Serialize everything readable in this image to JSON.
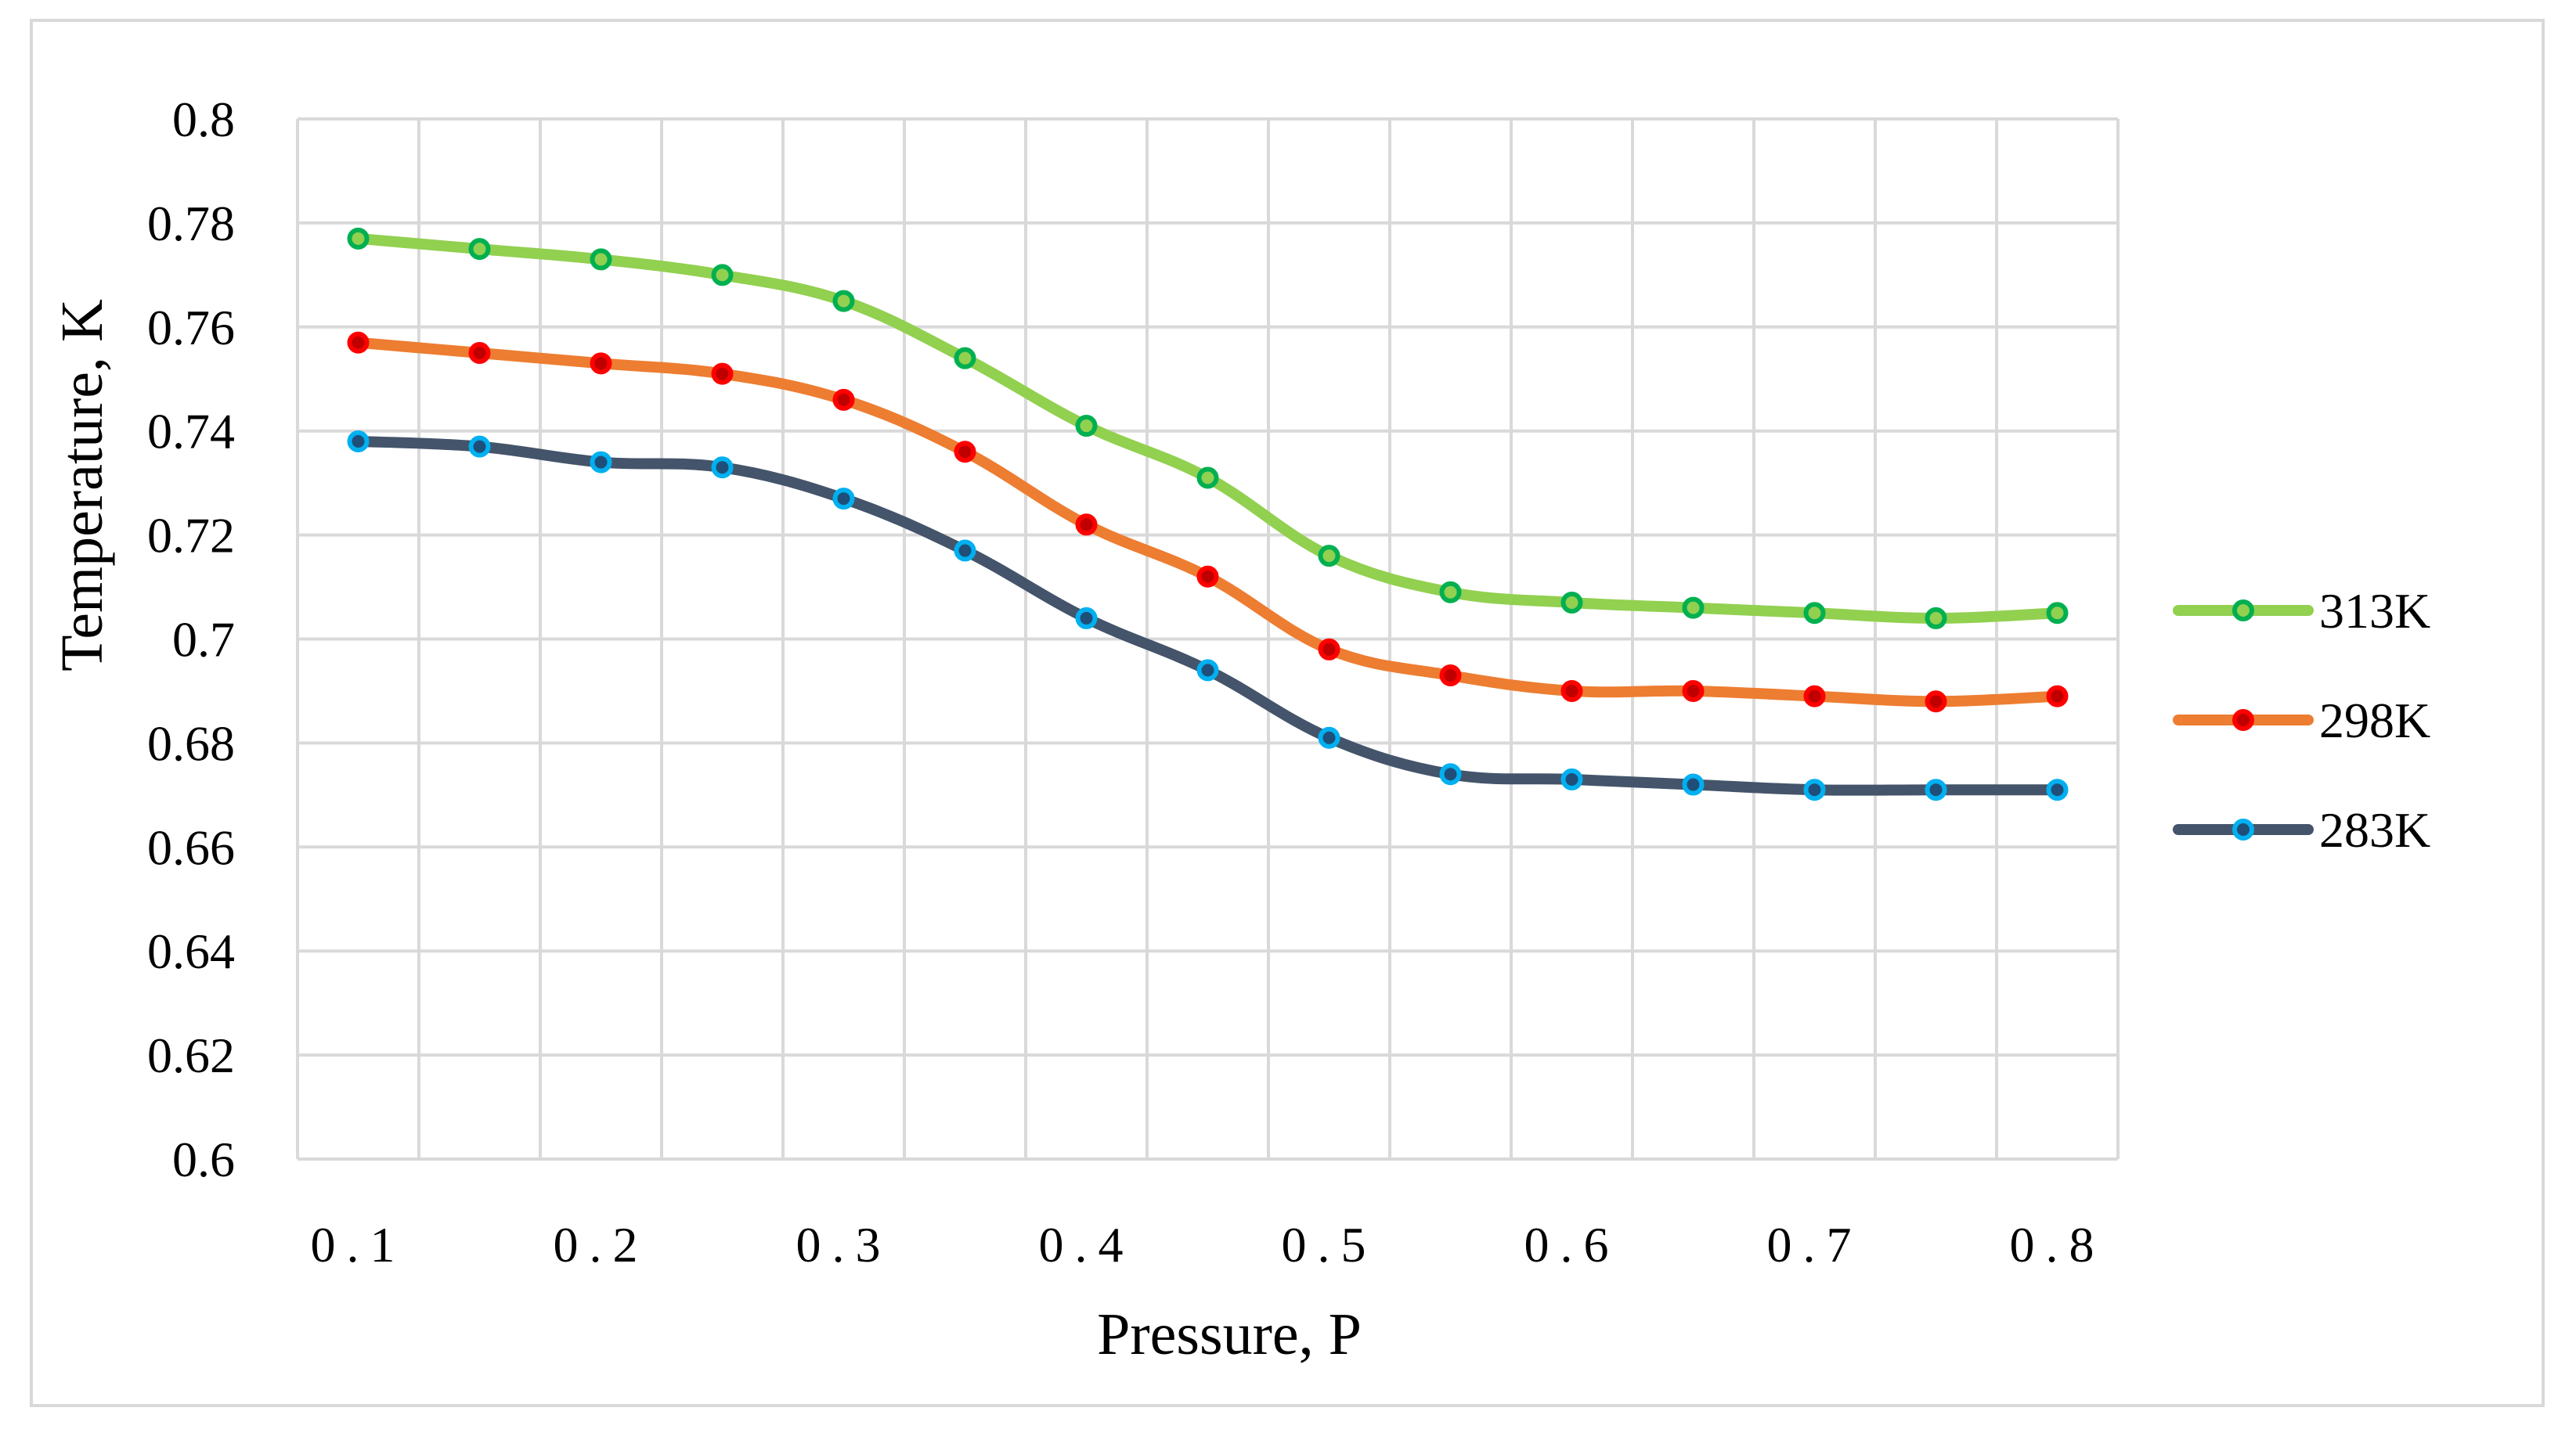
{
  "chart_data": {
    "type": "line",
    "title": "",
    "xlabel": "Pressure, P",
    "ylabel": "Temperature, K",
    "x": [
      0.1,
      0.15,
      0.2,
      0.25,
      0.3,
      0.35,
      0.4,
      0.45,
      0.5,
      0.55,
      0.6,
      0.65,
      0.7,
      0.75,
      0.8
    ],
    "x_tick_labels": [
      "0.1",
      "0.2",
      "0.3",
      "0.4",
      "0.5",
      "0.6",
      "0.7",
      "0.8"
    ],
    "y_tick_labels": [
      "0.6",
      "0.62",
      "0.64",
      "0.66",
      "0.68",
      "0.7",
      "0.72",
      "0.74",
      "0.76",
      "0.78",
      "0.8"
    ],
    "ylim": [
      0.6,
      0.8
    ],
    "grid": true,
    "legend_position": "right",
    "series": [
      {
        "name": "313K",
        "line_color": "#92D050",
        "marker_fill": "#92D050",
        "marker_edge": "#00B050",
        "values": [
          0.777,
          0.775,
          0.773,
          0.77,
          0.765,
          0.754,
          0.741,
          0.731,
          0.716,
          0.709,
          0.707,
          0.706,
          0.705,
          0.704,
          0.705
        ]
      },
      {
        "name": "298K",
        "line_color": "#ED7D31",
        "marker_fill": "#C00000",
        "marker_edge": "#FF0000",
        "values": [
          0.757,
          0.755,
          0.753,
          0.751,
          0.746,
          0.736,
          0.722,
          0.712,
          0.698,
          0.693,
          0.69,
          0.69,
          0.689,
          0.688,
          0.689
        ]
      },
      {
        "name": "283K",
        "line_color": "#44546A",
        "marker_fill": "#1F4E79",
        "marker_edge": "#00B0F0",
        "values": [
          0.738,
          0.737,
          0.734,
          0.733,
          0.727,
          0.717,
          0.704,
          0.694,
          0.681,
          0.674,
          0.673,
          0.672,
          0.671,
          0.671,
          0.671
        ]
      }
    ]
  }
}
